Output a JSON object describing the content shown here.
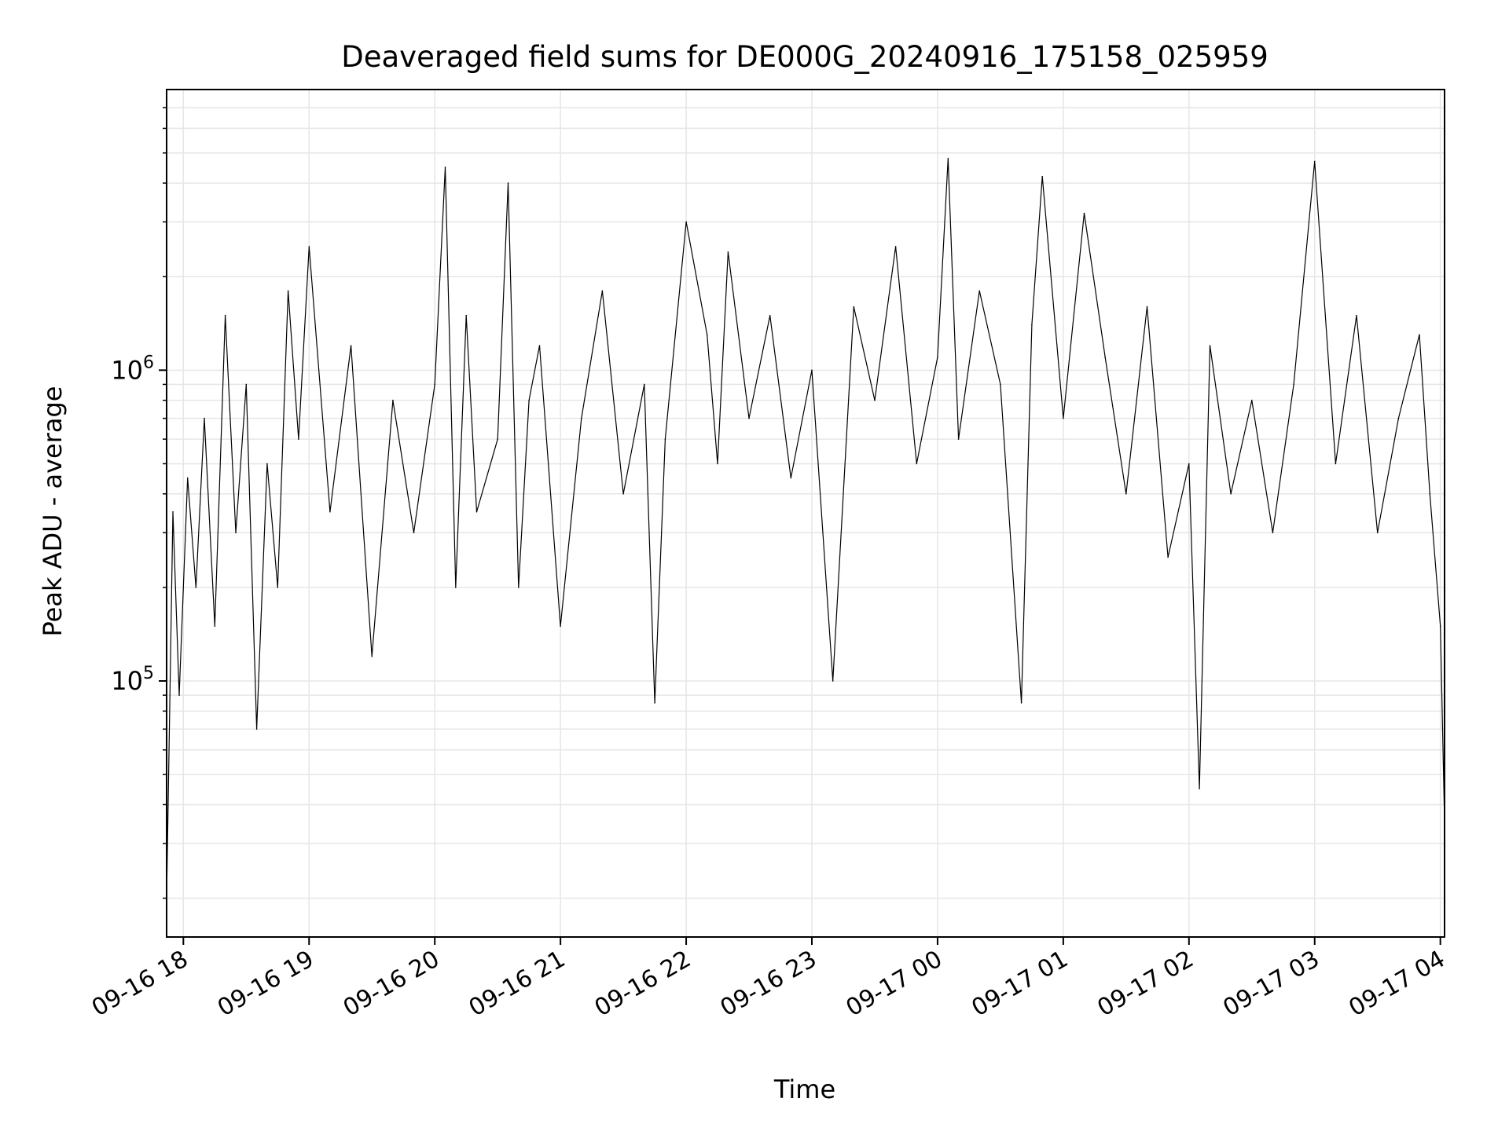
{
  "chart_data": {
    "type": "line",
    "title": "Deaveraged field sums for DE000G_20240916_175158_025959",
    "xlabel": "Time",
    "ylabel": "Peak ADU - average",
    "x_scale": "time",
    "y_scale": "log",
    "xlim": [
      "2024-09-16 17:52:00",
      "2024-09-17 04:02:00"
    ],
    "ylim": [
      15000,
      8000000
    ],
    "x_ticks": [
      {
        "value": "2024-09-16 18:00",
        "label": "09-16 18"
      },
      {
        "value": "2024-09-16 19:00",
        "label": "09-16 19"
      },
      {
        "value": "2024-09-16 20:00",
        "label": "09-16 20"
      },
      {
        "value": "2024-09-16 21:00",
        "label": "09-16 21"
      },
      {
        "value": "2024-09-16 22:00",
        "label": "09-16 22"
      },
      {
        "value": "2024-09-16 23:00",
        "label": "09-16 23"
      },
      {
        "value": "2024-09-17 00:00",
        "label": "09-17 00"
      },
      {
        "value": "2024-09-17 01:00",
        "label": "09-17 01"
      },
      {
        "value": "2024-09-17 02:00",
        "label": "09-17 02"
      },
      {
        "value": "2024-09-17 03:00",
        "label": "09-17 03"
      },
      {
        "value": "2024-09-17 04:00",
        "label": "09-17 04"
      }
    ],
    "y_ticks": [
      {
        "value": 100000,
        "base": "10",
        "exp": "5"
      },
      {
        "value": 1000000,
        "base": "10",
        "exp": "6"
      }
    ],
    "grid": true,
    "line_color": "#000000",
    "grid_color": "#e6e6e6",
    "series": [
      {
        "x": [
          "2024-09-16 17:52",
          "2024-09-16 17:55",
          "2024-09-16 17:58",
          "2024-09-16 18:02",
          "2024-09-16 18:06",
          "2024-09-16 18:10",
          "2024-09-16 18:15",
          "2024-09-16 18:20",
          "2024-09-16 18:25",
          "2024-09-16 18:30",
          "2024-09-16 18:35",
          "2024-09-16 18:40",
          "2024-09-16 18:45",
          "2024-09-16 18:50",
          "2024-09-16 18:55",
          "2024-09-16 19:00",
          "2024-09-16 19:10",
          "2024-09-16 19:20",
          "2024-09-16 19:30",
          "2024-09-16 19:40",
          "2024-09-16 19:50",
          "2024-09-16 20:00",
          "2024-09-16 20:05",
          "2024-09-16 20:10",
          "2024-09-16 20:15",
          "2024-09-16 20:20",
          "2024-09-16 20:30",
          "2024-09-16 20:35",
          "2024-09-16 20:40",
          "2024-09-16 20:45",
          "2024-09-16 20:50",
          "2024-09-16 21:00",
          "2024-09-16 21:10",
          "2024-09-16 21:20",
          "2024-09-16 21:30",
          "2024-09-16 21:40",
          "2024-09-16 21:45",
          "2024-09-16 21:50",
          "2024-09-16 22:00",
          "2024-09-16 22:10",
          "2024-09-16 22:15",
          "2024-09-16 22:20",
          "2024-09-16 22:30",
          "2024-09-16 22:40",
          "2024-09-16 22:50",
          "2024-09-16 23:00",
          "2024-09-16 23:10",
          "2024-09-16 23:20",
          "2024-09-16 23:30",
          "2024-09-16 23:40",
          "2024-09-16 23:50",
          "2024-09-17 00:00",
          "2024-09-17 00:05",
          "2024-09-17 00:10",
          "2024-09-17 00:20",
          "2024-09-17 00:30",
          "2024-09-17 00:40",
          "2024-09-17 00:45",
          "2024-09-17 00:50",
          "2024-09-17 01:00",
          "2024-09-17 01:10",
          "2024-09-17 01:20",
          "2024-09-17 01:30",
          "2024-09-17 01:40",
          "2024-09-17 01:50",
          "2024-09-17 02:00",
          "2024-09-17 02:05",
          "2024-09-17 02:10",
          "2024-09-17 02:20",
          "2024-09-17 02:30",
          "2024-09-17 02:40",
          "2024-09-17 02:50",
          "2024-09-17 03:00",
          "2024-09-17 03:10",
          "2024-09-17 03:20",
          "2024-09-17 03:30",
          "2024-09-17 03:40",
          "2024-09-17 03:50",
          "2024-09-17 03:55",
          "2024-09-17 04:00",
          "2024-09-17 04:02"
        ],
        "y": [
          20000,
          350000,
          90000,
          450000,
          200000,
          700000,
          150000,
          1500000,
          300000,
          900000,
          70000,
          500000,
          200000,
          1800000,
          600000,
          2500000,
          350000,
          1200000,
          120000,
          800000,
          300000,
          900000,
          4500000,
          200000,
          1500000,
          350000,
          600000,
          4000000,
          200000,
          800000,
          1200000,
          150000,
          700000,
          1800000,
          400000,
          900000,
          85000,
          600000,
          3000000,
          1300000,
          500000,
          2400000,
          700000,
          1500000,
          450000,
          1000000,
          100000,
          1600000,
          800000,
          2500000,
          500000,
          1100000,
          4800000,
          600000,
          1800000,
          900000,
          85000,
          1400000,
          4200000,
          700000,
          3200000,
          1100000,
          400000,
          1600000,
          250000,
          500000,
          45000,
          1200000,
          400000,
          800000,
          300000,
          900000,
          4700000,
          500000,
          1500000,
          300000,
          700000,
          1300000,
          400000,
          150000,
          35000
        ]
      }
    ]
  }
}
